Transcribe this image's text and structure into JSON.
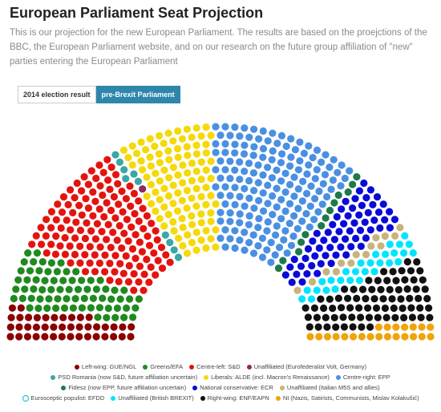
{
  "header": {
    "title": "European Parliament Seat Projection",
    "subtitle": "This is our projection for the new European Parliament. The results are based on the proejctions of the BBC, the European Parliament website, and on our research on the future group affiliation of \"new\" parties entering the European Parliament"
  },
  "tabs": [
    {
      "label": "2014 election result",
      "active": false
    },
    {
      "label": "pre-Brexit Parliament",
      "active": true
    }
  ],
  "chart_data": {
    "type": "parliament",
    "total_seats": 751,
    "series": [
      {
        "name": "Left-wing: GUE/NGL",
        "value": 42,
        "color": "#8b0000"
      },
      {
        "name": "Greens/EFA",
        "value": 70,
        "color": "#1f8a1f"
      },
      {
        "name": "Centre-left: S&D",
        "value": 139,
        "color": "#e3140f"
      },
      {
        "name": "PSD Romania (now S&D, future affiliation uncertain)",
        "value": 10,
        "color": "#3aa6a6"
      },
      {
        "name": "Unaffiliated (Eurofederalist Volt, Germany)",
        "value": 1,
        "color": "#8e2a5e"
      },
      {
        "name": "Liberals: ALDE (incl. Macron's Renaissance)",
        "value": 105,
        "color": "#f5d90a"
      },
      {
        "name": "Centre-right: EPP",
        "value": 169,
        "color": "#4a90e2"
      },
      {
        "name": "Fidesz (now EPP, future affiliation uncertain)",
        "value": 13,
        "color": "#1e7a4a"
      },
      {
        "name": "National conservative: ECR",
        "value": 62,
        "color": "#0a0ad8"
      },
      {
        "name": "Unaffiliated (Italian M5S and allies)",
        "value": 14,
        "color": "#c8b47a"
      },
      {
        "name": "Unaffiliated (British BREXIT)",
        "value": 29,
        "color": "#00e5ff"
      },
      {
        "name": "Eurosceptic populist: EFDD",
        "value": 0,
        "color": "#ffffff",
        "stroke": "#00bcd4"
      },
      {
        "name": "Right-wing: ENF/EAPN",
        "value": 75,
        "color": "#111111"
      },
      {
        "name": "NI (Nazis, Satirists, Communists, Mislav Kolakušić)",
        "value": 22,
        "color": "#f0a30a"
      }
    ]
  },
  "legend_rows": [
    [
      {
        "label": "Left-wing: GUE/NGL",
        "color": "#8b0000"
      },
      {
        "label": "Greens/EFA",
        "color": "#1f8a1f"
      },
      {
        "label": "Centre-left: S&D",
        "color": "#e3140f"
      },
      {
        "label": "Unaffiliated (Eurofederalist Volt, Germany)",
        "color": "#8e2a5e"
      }
    ],
    [
      {
        "label": "PSD Romania (now S&D, future affiliation uncertain)",
        "color": "#3aa6a6"
      },
      {
        "label": "Liberals: ALDE (incl. Macron's Renaissance)",
        "color": "#f5d90a"
      },
      {
        "label": "Centre-right: EPP",
        "color": "#4a90e2"
      }
    ],
    [
      {
        "label": "Fidesz (now EPP, future affiliation uncertain)",
        "color": "#1e7a4a"
      },
      {
        "label": "National conservative: ECR",
        "color": "#0a0ad8"
      },
      {
        "label": "Unaffiliated (Italian M5S and allies)",
        "color": "#c8b47a"
      }
    ],
    [
      {
        "label": "Eurosceptic populist: EFDD",
        "color": "#ffffff",
        "stroke": "#00bcd4"
      },
      {
        "label": "Unaffiliated (British BREXIT)",
        "color": "#00e5ff"
      },
      {
        "label": "Right-wing: ENF/EAPN",
        "color": "#111111"
      },
      {
        "label": "NI (Nazis, Satirists, Communists, Mislav Kolakušić)",
        "color": "#f0a30a"
      }
    ]
  ]
}
